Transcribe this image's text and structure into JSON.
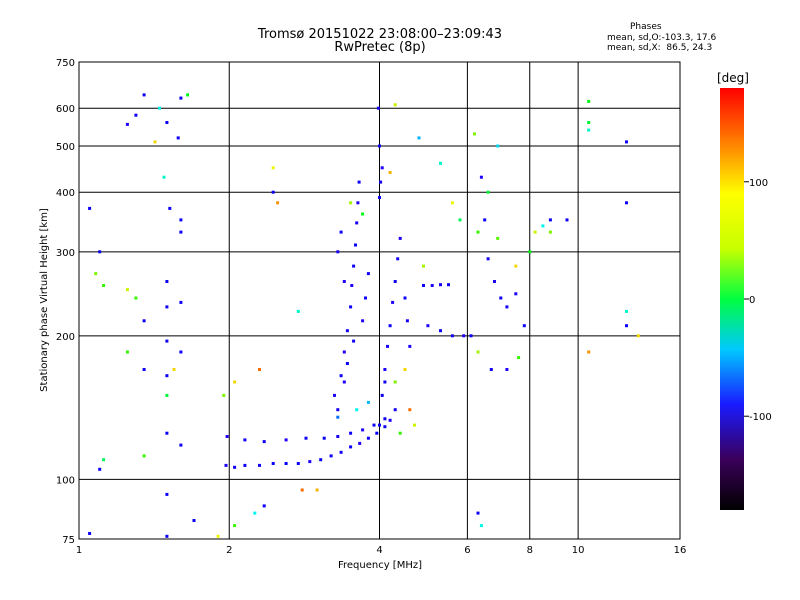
{
  "chart_data": {
    "type": "scatter",
    "title": "Tromsø 20151022 23:08:00–23:09:43",
    "subtitle": "RwPretec (8p)",
    "xlabel": "Frequency [MHz]",
    "ylabel": "Stationary phase Virtual Height [km]",
    "xscale": "log",
    "yscale": "log",
    "xlim": [
      1,
      16
    ],
    "ylim": [
      75,
      750
    ],
    "x_ticks": [
      1,
      2,
      4,
      6,
      8,
      10,
      16
    ],
    "x_tick_labels": [
      "1",
      "2",
      "4",
      "6",
      "8",
      "10",
      "16"
    ],
    "y_ticks": [
      75,
      100,
      200,
      300,
      400,
      500,
      600,
      750
    ],
    "y_tick_labels": [
      "75",
      "100",
      "200",
      "300",
      "400",
      "500",
      "600",
      "750"
    ],
    "grid": true,
    "phase_box": {
      "title": "Phases",
      "line1": "mean, sd,O:-103.3, 17.6",
      "line2": "mean, sd,X:  86.5, 24.3"
    },
    "colorbar": {
      "label": "[deg]",
      "ticks": [
        100,
        0,
        -100
      ],
      "tick_labels": [
        "100",
        "0",
        "-100"
      ],
      "range": [
        -180,
        180
      ]
    },
    "series": [
      {
        "values": [
          {
            "x": 1.97,
            "y": 107,
            "phase": -110
          },
          {
            "x": 2.05,
            "y": 106,
            "phase": -100
          },
          {
            "x": 2.15,
            "y": 107,
            "phase": -95
          },
          {
            "x": 2.3,
            "y": 107,
            "phase": -105
          },
          {
            "x": 2.45,
            "y": 108,
            "phase": -100
          },
          {
            "x": 2.6,
            "y": 108,
            "phase": -90
          },
          {
            "x": 2.75,
            "y": 108,
            "phase": -100
          },
          {
            "x": 2.9,
            "y": 109,
            "phase": -110
          },
          {
            "x": 3.05,
            "y": 110,
            "phase": -95
          },
          {
            "x": 3.2,
            "y": 112,
            "phase": -100
          },
          {
            "x": 3.35,
            "y": 114,
            "phase": -105
          },
          {
            "x": 3.5,
            "y": 117,
            "phase": -100
          },
          {
            "x": 3.65,
            "y": 119,
            "phase": -110
          },
          {
            "x": 3.8,
            "y": 122,
            "phase": -100
          },
          {
            "x": 3.95,
            "y": 125,
            "phase": -95
          },
          {
            "x": 4.1,
            "y": 129,
            "phase": -100
          },
          {
            "x": 4.2,
            "y": 133,
            "phase": -110
          },
          {
            "x": 1.98,
            "y": 123,
            "phase": -115
          },
          {
            "x": 2.15,
            "y": 121,
            "phase": -105
          },
          {
            "x": 2.35,
            "y": 120,
            "phase": -100
          },
          {
            "x": 2.6,
            "y": 121,
            "phase": -110
          },
          {
            "x": 2.85,
            "y": 122,
            "phase": -100
          },
          {
            "x": 3.1,
            "y": 122,
            "phase": -95
          },
          {
            "x": 3.3,
            "y": 123,
            "phase": -105
          },
          {
            "x": 3.5,
            "y": 125,
            "phase": -100
          },
          {
            "x": 3.7,
            "y": 127,
            "phase": -110
          },
          {
            "x": 3.9,
            "y": 130,
            "phase": -100
          },
          {
            "x": 4.1,
            "y": 134,
            "phase": -95
          },
          {
            "x": 4.3,
            "y": 140,
            "phase": -105
          },
          {
            "x": 3.25,
            "y": 150,
            "phase": -110
          },
          {
            "x": 3.35,
            "y": 165,
            "phase": -100
          },
          {
            "x": 3.4,
            "y": 185,
            "phase": -115
          },
          {
            "x": 3.45,
            "y": 205,
            "phase": -105
          },
          {
            "x": 3.5,
            "y": 230,
            "phase": -100
          },
          {
            "x": 3.52,
            "y": 255,
            "phase": -110
          },
          {
            "x": 3.55,
            "y": 280,
            "phase": -100
          },
          {
            "x": 3.58,
            "y": 310,
            "phase": -95
          },
          {
            "x": 3.6,
            "y": 345,
            "phase": -105
          },
          {
            "x": 3.62,
            "y": 380,
            "phase": -110
          },
          {
            "x": 3.64,
            "y": 420,
            "phase": -100
          },
          {
            "x": 3.3,
            "y": 140,
            "phase": -105
          },
          {
            "x": 3.4,
            "y": 160,
            "phase": -110
          },
          {
            "x": 3.45,
            "y": 175,
            "phase": -100
          },
          {
            "x": 3.55,
            "y": 195,
            "phase": -105
          },
          {
            "x": 3.7,
            "y": 215,
            "phase": -110
          },
          {
            "x": 3.75,
            "y": 240,
            "phase": -100
          },
          {
            "x": 3.8,
            "y": 270,
            "phase": -105
          },
          {
            "x": 3.3,
            "y": 300,
            "phase": -110
          },
          {
            "x": 3.35,
            "y": 330,
            "phase": -100
          },
          {
            "x": 3.4,
            "y": 260,
            "phase": -115
          },
          {
            "x": 4.05,
            "y": 150,
            "phase": -100
          },
          {
            "x": 4.1,
            "y": 170,
            "phase": -110
          },
          {
            "x": 4.15,
            "y": 190,
            "phase": -105
          },
          {
            "x": 4.2,
            "y": 210,
            "phase": -100
          },
          {
            "x": 4.25,
            "y": 235,
            "phase": -110
          },
          {
            "x": 4.3,
            "y": 260,
            "phase": -100
          },
          {
            "x": 4.35,
            "y": 290,
            "phase": -105
          },
          {
            "x": 4.4,
            "y": 320,
            "phase": -110
          },
          {
            "x": 4.5,
            "y": 240,
            "phase": -100
          },
          {
            "x": 4.55,
            "y": 215,
            "phase": -105
          },
          {
            "x": 4.6,
            "y": 190,
            "phase": -110
          },
          {
            "x": 4.0,
            "y": 390,
            "phase": -100
          },
          {
            "x": 4.02,
            "y": 420,
            "phase": -105
          },
          {
            "x": 4.05,
            "y": 450,
            "phase": -110
          },
          {
            "x": 4.0,
            "y": 500,
            "phase": -100
          },
          {
            "x": 3.98,
            "y": 600,
            "phase": -105
          },
          {
            "x": 4.9,
            "y": 255,
            "phase": -100
          },
          {
            "x": 5.1,
            "y": 255,
            "phase": -110
          },
          {
            "x": 5.3,
            "y": 256,
            "phase": -105
          },
          {
            "x": 5.5,
            "y": 256,
            "phase": -100
          },
          {
            "x": 5.0,
            "y": 210,
            "phase": -110
          },
          {
            "x": 5.3,
            "y": 205,
            "phase": -100
          },
          {
            "x": 5.6,
            "y": 200,
            "phase": -105
          },
          {
            "x": 5.9,
            "y": 200,
            "phase": -110
          },
          {
            "x": 6.1,
            "y": 200,
            "phase": -100
          },
          {
            "x": 3.3,
            "y": 135,
            "phase": -60
          },
          {
            "x": 3.6,
            "y": 140,
            "phase": -20
          },
          {
            "x": 3.8,
            "y": 145,
            "phase": -40
          },
          {
            "x": 4.3,
            "y": 160,
            "phase": 80
          },
          {
            "x": 4.5,
            "y": 170,
            "phase": 120
          },
          {
            "x": 4.6,
            "y": 140,
            "phase": 150
          },
          {
            "x": 4.7,
            "y": 130,
            "phase": 100
          },
          {
            "x": 4.4,
            "y": 125,
            "phase": 60
          },
          {
            "x": 3.5,
            "y": 380,
            "phase": 90
          },
          {
            "x": 3.7,
            "y": 360,
            "phase": 40
          },
          {
            "x": 4.2,
            "y": 440,
            "phase": 130
          },
          {
            "x": 4.3,
            "y": 610,
            "phase": 100
          },
          {
            "x": 4.8,
            "y": 520,
            "phase": -40
          },
          {
            "x": 5.3,
            "y": 460,
            "phase": -10
          },
          {
            "x": 5.6,
            "y": 380,
            "phase": 110
          },
          {
            "x": 4.9,
            "y": 280,
            "phase": 90
          },
          {
            "x": 5.8,
            "y": 350,
            "phase": 20
          },
          {
            "x": 6.3,
            "y": 330,
            "phase": 60
          },
          {
            "x": 6.5,
            "y": 350,
            "phase": -100
          },
          {
            "x": 6.6,
            "y": 290,
            "phase": -105
          },
          {
            "x": 6.8,
            "y": 260,
            "phase": -110
          },
          {
            "x": 7.0,
            "y": 240,
            "phase": -100
          },
          {
            "x": 7.2,
            "y": 230,
            "phase": -105
          },
          {
            "x": 7.5,
            "y": 245,
            "phase": -110
          },
          {
            "x": 7.8,
            "y": 210,
            "phase": -100
          },
          {
            "x": 6.7,
            "y": 170,
            "phase": -105
          },
          {
            "x": 7.2,
            "y": 170,
            "phase": -110
          },
          {
            "x": 6.9,
            "y": 320,
            "phase": 70
          },
          {
            "x": 7.5,
            "y": 280,
            "phase": 120
          },
          {
            "x": 8.0,
            "y": 300,
            "phase": 40
          },
          {
            "x": 8.5,
            "y": 340,
            "phase": -20
          },
          {
            "x": 6.3,
            "y": 185,
            "phase": 90
          },
          {
            "x": 7.6,
            "y": 180,
            "phase": 60
          },
          {
            "x": 8.2,
            "y": 330,
            "phase": 100
          },
          {
            "x": 8.8,
            "y": 350,
            "phase": -100
          },
          {
            "x": 6.4,
            "y": 430,
            "phase": -110
          },
          {
            "x": 6.6,
            "y": 400,
            "phase": 30
          },
          {
            "x": 6.9,
            "y": 500,
            "phase": -30
          },
          {
            "x": 6.2,
            "y": 530,
            "phase": 80
          },
          {
            "x": 1.05,
            "y": 370,
            "phase": -100
          },
          {
            "x": 1.1,
            "y": 300,
            "phase": -100
          },
          {
            "x": 1.08,
            "y": 270,
            "phase": 80
          },
          {
            "x": 1.12,
            "y": 255,
            "phase": 60
          },
          {
            "x": 1.25,
            "y": 555,
            "phase": -110
          },
          {
            "x": 1.3,
            "y": 580,
            "phase": -100
          },
          {
            "x": 1.35,
            "y": 640,
            "phase": -100
          },
          {
            "x": 1.42,
            "y": 510,
            "phase": 120
          },
          {
            "x": 1.45,
            "y": 600,
            "phase": -20
          },
          {
            "x": 1.5,
            "y": 560,
            "phase": -100
          },
          {
            "x": 1.48,
            "y": 430,
            "phase": -10
          },
          {
            "x": 1.52,
            "y": 370,
            "phase": -100
          },
          {
            "x": 1.6,
            "y": 630,
            "phase": -100
          },
          {
            "x": 1.65,
            "y": 640,
            "phase": 40
          },
          {
            "x": 1.58,
            "y": 520,
            "phase": -100
          },
          {
            "x": 1.6,
            "y": 350,
            "phase": -100
          },
          {
            "x": 1.6,
            "y": 330,
            "phase": -100
          },
          {
            "x": 1.5,
            "y": 260,
            "phase": -100
          },
          {
            "x": 1.5,
            "y": 230,
            "phase": -100
          },
          {
            "x": 1.35,
            "y": 215,
            "phase": -100
          },
          {
            "x": 1.3,
            "y": 240,
            "phase": 60
          },
          {
            "x": 1.25,
            "y": 250,
            "phase": 100
          },
          {
            "x": 1.6,
            "y": 235,
            "phase": -100
          },
          {
            "x": 1.5,
            "y": 195,
            "phase": -100
          },
          {
            "x": 1.6,
            "y": 185,
            "phase": -100
          },
          {
            "x": 1.25,
            "y": 185,
            "phase": 60
          },
          {
            "x": 1.35,
            "y": 170,
            "phase": -100
          },
          {
            "x": 1.5,
            "y": 165,
            "phase": -100
          },
          {
            "x": 1.5,
            "y": 150,
            "phase": 30
          },
          {
            "x": 1.55,
            "y": 170,
            "phase": 120
          },
          {
            "x": 1.5,
            "y": 125,
            "phase": -100
          },
          {
            "x": 1.6,
            "y": 118,
            "phase": -100
          },
          {
            "x": 1.35,
            "y": 112,
            "phase": 60
          },
          {
            "x": 1.1,
            "y": 105,
            "phase": -100
          },
          {
            "x": 1.12,
            "y": 110,
            "phase": 20
          },
          {
            "x": 1.5,
            "y": 93,
            "phase": -100
          },
          {
            "x": 1.5,
            "y": 76,
            "phase": -100
          },
          {
            "x": 1.7,
            "y": 82,
            "phase": -100
          },
          {
            "x": 1.05,
            "y": 77,
            "phase": -100
          },
          {
            "x": 1.95,
            "y": 150,
            "phase": 80
          },
          {
            "x": 2.05,
            "y": 160,
            "phase": 120
          },
          {
            "x": 2.3,
            "y": 170,
            "phase": 150
          },
          {
            "x": 2.45,
            "y": 400,
            "phase": -100
          },
          {
            "x": 2.5,
            "y": 380,
            "phase": 140
          },
          {
            "x": 2.45,
            "y": 450,
            "phase": 110
          },
          {
            "x": 2.75,
            "y": 225,
            "phase": -10
          },
          {
            "x": 2.8,
            "y": 95,
            "phase": 150
          },
          {
            "x": 3.0,
            "y": 95,
            "phase": 130
          },
          {
            "x": 2.35,
            "y": 88,
            "phase": -100
          },
          {
            "x": 2.05,
            "y": 80,
            "phase": 60
          },
          {
            "x": 1.9,
            "y": 76,
            "phase": 110
          },
          {
            "x": 2.25,
            "y": 85,
            "phase": -20
          },
          {
            "x": 10.5,
            "y": 620,
            "phase": 40
          },
          {
            "x": 10.5,
            "y": 560,
            "phase": 30
          },
          {
            "x": 10.5,
            "y": 540,
            "phase": -10
          },
          {
            "x": 12.5,
            "y": 510,
            "phase": -100
          },
          {
            "x": 12.5,
            "y": 380,
            "phase": -100
          },
          {
            "x": 12.5,
            "y": 225,
            "phase": -10
          },
          {
            "x": 12.5,
            "y": 210,
            "phase": -100
          },
          {
            "x": 13.2,
            "y": 200,
            "phase": 120
          },
          {
            "x": 10.5,
            "y": 185,
            "phase": 140
          },
          {
            "x": 9.5,
            "y": 350,
            "phase": -100
          },
          {
            "x": 8.8,
            "y": 330,
            "phase": 80
          },
          {
            "x": 6.3,
            "y": 85,
            "phase": -100
          },
          {
            "x": 6.4,
            "y": 80,
            "phase": -20
          },
          {
            "x": 4.1,
            "y": 160,
            "phase": -100
          },
          {
            "x": 4.0,
            "y": 130,
            "phase": -100
          }
        ]
      }
    ]
  }
}
